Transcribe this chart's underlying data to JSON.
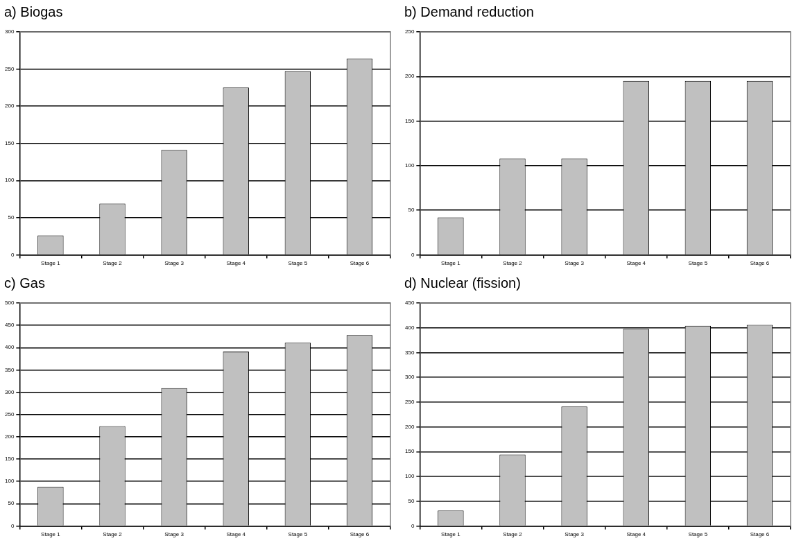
{
  "chart_data": [
    {
      "type": "bar",
      "title": "a) Biogas",
      "categories": [
        "Stage 1",
        "Stage 2",
        "Stage 3",
        "Stage 4",
        "Stage 5",
        "Stage 6"
      ],
      "values": [
        26,
        69,
        141,
        225,
        247,
        264
      ],
      "color": "#c0c0c0",
      "ylim": [
        0,
        300
      ],
      "yticks": [
        0,
        50,
        100,
        150,
        200,
        250,
        300
      ],
      "grid": "y",
      "legend": false
    },
    {
      "type": "bar",
      "title": "b) Demand reduction",
      "categories": [
        "Stage 1",
        "Stage 2",
        "Stage 3",
        "Stage 4",
        "Stage 5",
        "Stage 6"
      ],
      "values": [
        42,
        108,
        108,
        195,
        195,
        195
      ],
      "color": "#c0c0c0",
      "ylim": [
        0,
        250
      ],
      "yticks": [
        0,
        50,
        100,
        150,
        200,
        250
      ],
      "grid": "y",
      "legend": false
    },
    {
      "type": "bar",
      "title": "c) Gas",
      "categories": [
        "Stage 1",
        "Stage 2",
        "Stage 3",
        "Stage 4",
        "Stage 5",
        "Stage 6"
      ],
      "values": [
        88,
        224,
        309,
        391,
        411,
        428
      ],
      "color": "#c0c0c0",
      "ylim": [
        0,
        500
      ],
      "yticks": [
        0,
        50,
        100,
        150,
        200,
        250,
        300,
        350,
        400,
        450,
        500
      ],
      "grid": "y",
      "legend": false
    },
    {
      "type": "bar",
      "title": "d) Nuclear (fission)",
      "categories": [
        "Stage 1",
        "Stage 2",
        "Stage 3",
        "Stage 4",
        "Stage 5",
        "Stage 6"
      ],
      "values": [
        31,
        144,
        241,
        398,
        404,
        406
      ],
      "color": "#c0c0c0",
      "ylim": [
        0,
        450
      ],
      "yticks": [
        0,
        50,
        100,
        150,
        200,
        250,
        300,
        350,
        400,
        450
      ],
      "grid": "y",
      "legend": false
    }
  ]
}
